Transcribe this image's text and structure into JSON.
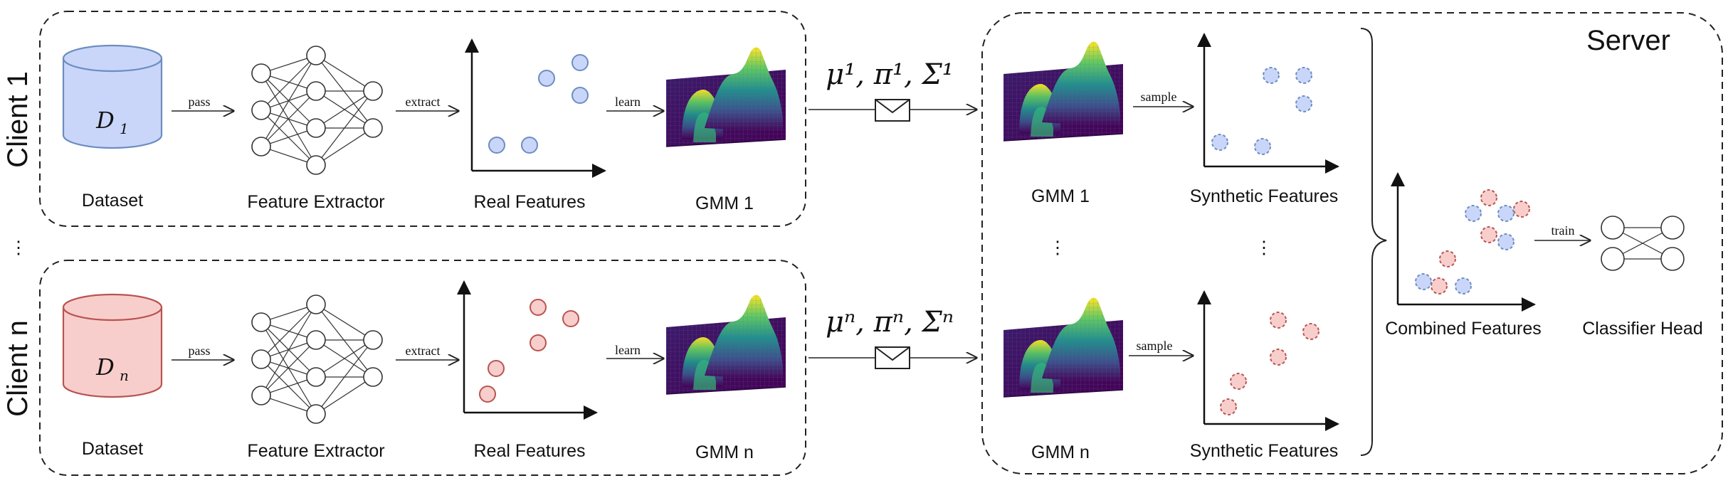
{
  "clients": [
    {
      "label": "Client 1",
      "dataset_symbol": "D",
      "dataset_sub": "1",
      "color_fill": "#c9d6fa",
      "color_stroke": "#6c8ebf",
      "dataset_label": "Dataset",
      "extractor_label": "Feature Extractor",
      "real_features_label": "Real Features",
      "gmm_label": "GMM 1",
      "edge_pass": "pass",
      "edge_extract": "extract",
      "edge_learn": "learn",
      "params_label": "μ¹, π¹, Σ¹"
    },
    {
      "label": "Client n",
      "dataset_symbol": "D",
      "dataset_sub": "n",
      "color_fill": "#f8cecc",
      "color_stroke": "#b85450",
      "dataset_label": "Dataset",
      "extractor_label": "Feature Extractor",
      "real_features_label": "Real Features",
      "gmm_label": "GMM n",
      "edge_pass": "pass",
      "edge_extract": "extract",
      "edge_learn": "learn",
      "params_label": "μⁿ, πⁿ, Σⁿ"
    }
  ],
  "server": {
    "title": "Server",
    "gmm_top_label": "GMM 1",
    "gmm_bottom_label": "GMM n",
    "synthetic_top_label": "Synthetic Features",
    "synthetic_bottom_label": "Synthetic Features",
    "edge_sample_top": "sample",
    "edge_sample_bottom": "sample",
    "combined_label": "Combined Features",
    "edge_train": "train",
    "classifier_label": "Classifier Head"
  },
  "ellipsis_clients": "⋮",
  "ellipsis_server": "⋮",
  "colors": {
    "blue_fill": "#c9d6fa",
    "blue_stroke": "#6c8ebf",
    "red_fill": "#f8cecc",
    "red_stroke": "#b85450",
    "gmm_dark": "#440154",
    "gmm_mid": "#21918c",
    "gmm_peak": "#fde725"
  }
}
